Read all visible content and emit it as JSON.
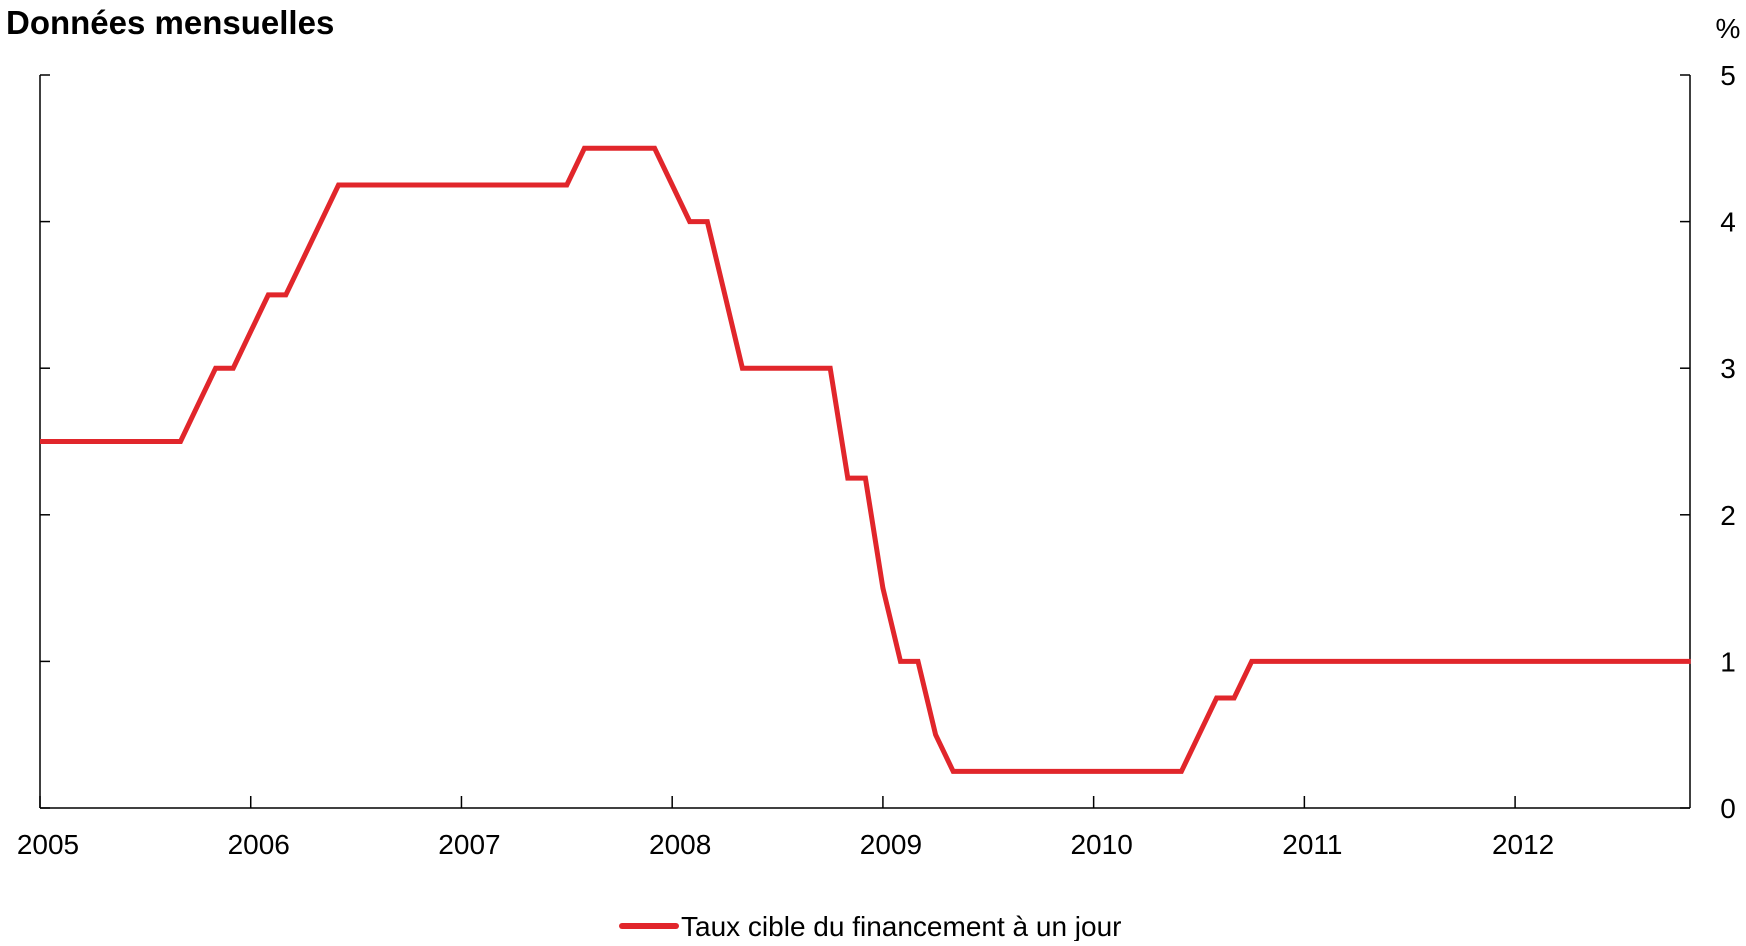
{
  "chart_data": {
    "type": "line",
    "title": "Données mensuelles",
    "ylabel": "%",
    "xlim": [
      2005,
      2012.83
    ],
    "ylim": [
      0,
      5
    ],
    "x_ticks": [
      "2005",
      "2006",
      "2007",
      "2008",
      "2009",
      "2010",
      "2011",
      "2012"
    ],
    "y_ticks": [
      "0",
      "1",
      "2",
      "3",
      "4",
      "5"
    ],
    "grid": false,
    "legend_position": "bottom-center",
    "colors": {
      "series": "#e1262b",
      "axis": "#000000"
    },
    "series": [
      {
        "name": "Taux cible du financement à un jour",
        "points": [
          [
            "2005-01",
            2.5
          ],
          [
            "2005-02",
            2.5
          ],
          [
            "2005-03",
            2.5
          ],
          [
            "2005-04",
            2.5
          ],
          [
            "2005-05",
            2.5
          ],
          [
            "2005-06",
            2.5
          ],
          [
            "2005-07",
            2.5
          ],
          [
            "2005-08",
            2.5
          ],
          [
            "2005-09",
            2.5
          ],
          [
            "2005-10",
            2.75
          ],
          [
            "2005-11",
            3.0
          ],
          [
            "2005-12",
            3.0
          ],
          [
            "2006-01",
            3.25
          ],
          [
            "2006-02",
            3.5
          ],
          [
            "2006-03",
            3.5
          ],
          [
            "2006-04",
            3.75
          ],
          [
            "2006-05",
            4.0
          ],
          [
            "2006-06",
            4.25
          ],
          [
            "2006-07",
            4.25
          ],
          [
            "2006-08",
            4.25
          ],
          [
            "2006-09",
            4.25
          ],
          [
            "2006-10",
            4.25
          ],
          [
            "2006-11",
            4.25
          ],
          [
            "2006-12",
            4.25
          ],
          [
            "2007-01",
            4.25
          ],
          [
            "2007-02",
            4.25
          ],
          [
            "2007-03",
            4.25
          ],
          [
            "2007-04",
            4.25
          ],
          [
            "2007-05",
            4.25
          ],
          [
            "2007-06",
            4.25
          ],
          [
            "2007-07",
            4.25
          ],
          [
            "2007-08",
            4.5
          ],
          [
            "2007-09",
            4.5
          ],
          [
            "2007-10",
            4.5
          ],
          [
            "2007-11",
            4.5
          ],
          [
            "2007-12",
            4.5
          ],
          [
            "2008-01",
            4.25
          ],
          [
            "2008-02",
            4.0
          ],
          [
            "2008-03",
            4.0
          ],
          [
            "2008-04",
            3.5
          ],
          [
            "2008-05",
            3.0
          ],
          [
            "2008-06",
            3.0
          ],
          [
            "2008-07",
            3.0
          ],
          [
            "2008-08",
            3.0
          ],
          [
            "2008-09",
            3.0
          ],
          [
            "2008-10",
            3.0
          ],
          [
            "2008-11",
            2.25
          ],
          [
            "2008-12",
            2.25
          ],
          [
            "2009-01",
            1.5
          ],
          [
            "2009-02",
            1.0
          ],
          [
            "2009-03",
            1.0
          ],
          [
            "2009-04",
            0.5
          ],
          [
            "2009-05",
            0.25
          ],
          [
            "2009-06",
            0.25
          ],
          [
            "2009-07",
            0.25
          ],
          [
            "2009-08",
            0.25
          ],
          [
            "2009-09",
            0.25
          ],
          [
            "2009-10",
            0.25
          ],
          [
            "2009-11",
            0.25
          ],
          [
            "2009-12",
            0.25
          ],
          [
            "2010-01",
            0.25
          ],
          [
            "2010-02",
            0.25
          ],
          [
            "2010-03",
            0.25
          ],
          [
            "2010-04",
            0.25
          ],
          [
            "2010-05",
            0.25
          ],
          [
            "2010-06",
            0.25
          ],
          [
            "2010-07",
            0.5
          ],
          [
            "2010-08",
            0.75
          ],
          [
            "2010-09",
            0.75
          ],
          [
            "2010-10",
            1.0
          ],
          [
            "2010-11",
            1.0
          ],
          [
            "2010-12",
            1.0
          ],
          [
            "2011-01",
            1.0
          ],
          [
            "2011-02",
            1.0
          ],
          [
            "2011-03",
            1.0
          ],
          [
            "2011-04",
            1.0
          ],
          [
            "2011-05",
            1.0
          ],
          [
            "2011-06",
            1.0
          ],
          [
            "2011-07",
            1.0
          ],
          [
            "2011-08",
            1.0
          ],
          [
            "2011-09",
            1.0
          ],
          [
            "2011-10",
            1.0
          ],
          [
            "2011-11",
            1.0
          ],
          [
            "2011-12",
            1.0
          ],
          [
            "2012-01",
            1.0
          ],
          [
            "2012-02",
            1.0
          ],
          [
            "2012-03",
            1.0
          ],
          [
            "2012-04",
            1.0
          ],
          [
            "2012-05",
            1.0
          ],
          [
            "2012-06",
            1.0
          ],
          [
            "2012-07",
            1.0
          ],
          [
            "2012-08",
            1.0
          ],
          [
            "2012-09",
            1.0
          ],
          [
            "2012-10",
            1.0
          ],
          [
            "2012-11",
            1.0
          ]
        ]
      }
    ]
  }
}
